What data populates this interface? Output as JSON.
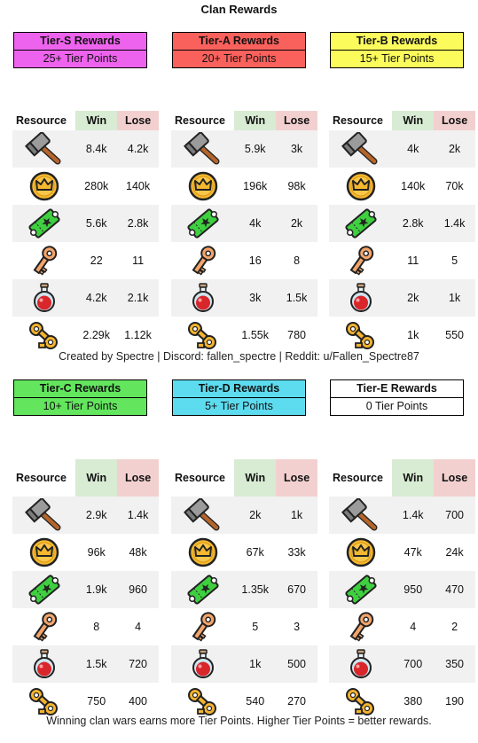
{
  "title": "Clan Rewards",
  "credit": "Created by Spectre | Discord: fallen_spectre | Reddit: u/Fallen_Spectre87",
  "footer": "Winning clan wars earns more Tier Points. Higher Tier Points = better rewards.",
  "headers": {
    "resource": "Resource",
    "win": "Win",
    "lose": "Lose"
  },
  "colors": {
    "tier_s": "#ee63ee",
    "tier_a": "#fb615c",
    "tier_b": "#fbfb5c",
    "tier_c": "#63e65e",
    "tier_d": "#5ddcef",
    "tier_e": "#ffffff",
    "win_header": "#d8ebd3",
    "lose_header": "#f3d0d0"
  },
  "resource_icons": [
    "hammer-icon",
    "crown-coin-icon",
    "ticket-icon",
    "key-icon",
    "potion-icon",
    "wind-up-key-icon"
  ],
  "tiers": [
    {
      "name": "Tier-S Rewards",
      "points": "25+ Tier Points",
      "rows": [
        [
          "8.4k",
          "4.2k"
        ],
        [
          "280k",
          "140k"
        ],
        [
          "5.6k",
          "2.8k"
        ],
        [
          "22",
          "11"
        ],
        [
          "4.2k",
          "2.1k"
        ],
        [
          "2.29k",
          "1.12k"
        ]
      ]
    },
    {
      "name": "Tier-A Rewards",
      "points": "20+ Tier Points",
      "rows": [
        [
          "5.9k",
          "3k"
        ],
        [
          "196k",
          "98k"
        ],
        [
          "4k",
          "2k"
        ],
        [
          "16",
          "8"
        ],
        [
          "3k",
          "1.5k"
        ],
        [
          "1.55k",
          "780"
        ]
      ]
    },
    {
      "name": "Tier-B Rewards",
      "points": "15+ Tier Points",
      "rows": [
        [
          "4k",
          "2k"
        ],
        [
          "140k",
          "70k"
        ],
        [
          "2.8k",
          "1.4k"
        ],
        [
          "11",
          "5"
        ],
        [
          "2k",
          "1k"
        ],
        [
          "1k",
          "550"
        ]
      ]
    },
    {
      "name": "Tier-C Rewards",
      "points": "10+ Tier Points",
      "rows": [
        [
          "2.9k",
          "1.4k"
        ],
        [
          "96k",
          "48k"
        ],
        [
          "1.9k",
          "960"
        ],
        [
          "8",
          "4"
        ],
        [
          "1.5k",
          "720"
        ],
        [
          "750",
          "400"
        ]
      ]
    },
    {
      "name": "Tier-D Rewards",
      "points": "5+ Tier Points",
      "rows": [
        [
          "2k",
          "1k"
        ],
        [
          "67k",
          "33k"
        ],
        [
          "1.35k",
          "670"
        ],
        [
          "5",
          "3"
        ],
        [
          "1k",
          "500"
        ],
        [
          "540",
          "270"
        ]
      ]
    },
    {
      "name": "Tier-E Rewards",
      "points": "0 Tier Points",
      "rows": [
        [
          "1.4k",
          "700"
        ],
        [
          "47k",
          "24k"
        ],
        [
          "950",
          "470"
        ],
        [
          "4",
          "2"
        ],
        [
          "700",
          "350"
        ],
        [
          "380",
          "190"
        ]
      ]
    }
  ]
}
